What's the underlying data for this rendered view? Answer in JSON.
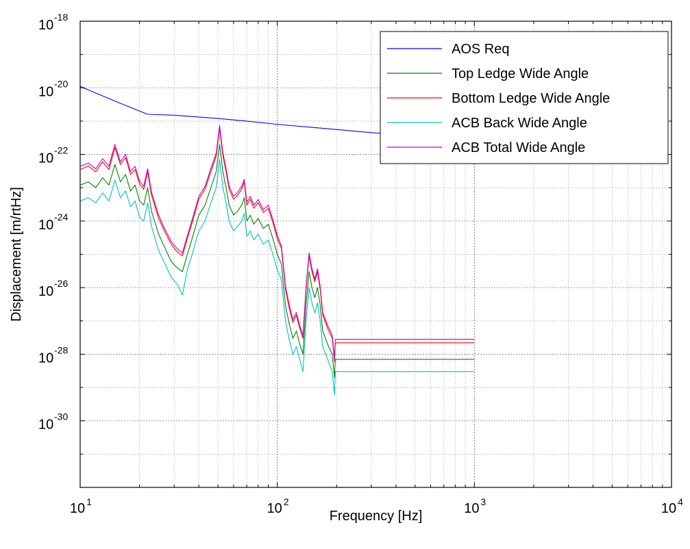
{
  "chart_data": {
    "type": "line",
    "xlabel": "Frequency [Hz]",
    "ylabel": "Displacement [m/rtHz]",
    "xscale": "log",
    "yscale": "log",
    "xlim": [
      10,
      10000
    ],
    "ylim": [
      1e-32,
      1e-18
    ],
    "grid": true,
    "legend_position": "top-right",
    "x_ticks": [
      {
        "base": "10",
        "exp": "1"
      },
      {
        "base": "10",
        "exp": "2"
      },
      {
        "base": "10",
        "exp": "3"
      },
      {
        "base": "10",
        "exp": "4"
      }
    ],
    "y_ticks": [
      {
        "value": 1e-18,
        "base": "10",
        "exp": "-18"
      },
      {
        "value": 1e-20,
        "base": "10",
        "exp": "-20"
      },
      {
        "value": 1e-22,
        "base": "10",
        "exp": "-22"
      },
      {
        "value": 1e-24,
        "base": "10",
        "exp": "-24"
      },
      {
        "value": 1e-26,
        "base": "10",
        "exp": "-26"
      },
      {
        "value": 1e-28,
        "base": "10",
        "exp": "-28"
      },
      {
        "value": 1e-30,
        "base": "10",
        "exp": "-30"
      }
    ],
    "series": [
      {
        "name": "AOS Req",
        "color": "#0000ff",
        "points": [
          [
            10,
            1.1e-20
          ],
          [
            12,
            7e-21
          ],
          [
            15,
            4e-21
          ],
          [
            20,
            2e-21
          ],
          [
            22,
            1.6e-21
          ],
          [
            30,
            1.5e-21
          ],
          [
            50,
            1.2e-21
          ],
          [
            70,
            1e-21
          ],
          [
            100,
            8e-22
          ],
          [
            150,
            6.5e-22
          ],
          [
            200,
            5.6e-22
          ],
          [
            300,
            4.5e-22
          ],
          [
            340,
            4.3e-22
          ]
        ]
      },
      {
        "name": "Top Ledge Wide Angle",
        "color": "#008000",
        "points": [
          [
            10,
            1.2e-23
          ],
          [
            11,
            1.5e-23
          ],
          [
            12,
            1e-23
          ],
          [
            13,
            2e-23
          ],
          [
            14,
            1.2e-23
          ],
          [
            15,
            5e-23
          ],
          [
            16,
            1.5e-23
          ],
          [
            17,
            2.5e-23
          ],
          [
            18,
            8e-24
          ],
          [
            19,
            1.2e-23
          ],
          [
            20,
            4e-24
          ],
          [
            21,
            3e-24
          ],
          [
            22,
            1e-23
          ],
          [
            23,
            2e-24
          ],
          [
            25,
            4e-25
          ],
          [
            27,
            1.5e-25
          ],
          [
            29,
            6e-26
          ],
          [
            31,
            4e-26
          ],
          [
            33,
            3e-26
          ],
          [
            35,
            1e-25
          ],
          [
            37,
            3e-25
          ],
          [
            40,
            1.5e-24
          ],
          [
            43,
            3e-24
          ],
          [
            46,
            1e-23
          ],
          [
            49,
            3e-23
          ],
          [
            51,
            2e-22
          ],
          [
            53,
            3e-23
          ],
          [
            55,
            1e-23
          ],
          [
            57,
            3e-24
          ],
          [
            60,
            1.5e-24
          ],
          [
            63,
            2e-24
          ],
          [
            66,
            3e-24
          ],
          [
            68,
            5e-24
          ],
          [
            70,
            1e-24
          ],
          [
            73,
            1.5e-24
          ],
          [
            76,
            8e-25
          ],
          [
            80,
            1.2e-24
          ],
          [
            85,
            6e-25
          ],
          [
            90,
            8e-25
          ],
          [
            95,
            3e-25
          ],
          [
            100,
            1e-25
          ],
          [
            105,
            5e-26
          ],
          [
            110,
            3e-27
          ],
          [
            115,
            8e-28
          ],
          [
            120,
            3e-28
          ],
          [
            125,
            5e-28
          ],
          [
            130,
            2e-28
          ],
          [
            135,
            1e-28
          ],
          [
            140,
            3e-27
          ],
          [
            145,
            3e-26
          ],
          [
            150,
            1e-26
          ],
          [
            155,
            5e-27
          ],
          [
            160,
            1e-26
          ],
          [
            165,
            3e-27
          ],
          [
            170,
            5e-28
          ],
          [
            180,
            2e-28
          ],
          [
            190,
            1e-28
          ],
          [
            195,
            2e-29
          ],
          [
            197,
            7e-29
          ],
          [
            1000,
            7e-29
          ]
        ]
      },
      {
        "name": "Bottom Ledge Wide Angle",
        "color": "#ff0000",
        "points": [
          [
            10,
            3.5e-23
          ],
          [
            11,
            4.5e-23
          ],
          [
            12,
            3e-23
          ],
          [
            13,
            6e-23
          ],
          [
            14,
            3.5e-23
          ],
          [
            15,
            1.6e-22
          ],
          [
            16,
            5e-23
          ],
          [
            17,
            8e-23
          ],
          [
            18,
            2.5e-23
          ],
          [
            19,
            3.5e-23
          ],
          [
            20,
            1.3e-23
          ],
          [
            21,
            9e-24
          ],
          [
            22,
            3e-23
          ],
          [
            23,
            6e-24
          ],
          [
            25,
            1.2e-24
          ],
          [
            27,
            4.5e-25
          ],
          [
            29,
            2e-25
          ],
          [
            31,
            1.2e-25
          ],
          [
            33,
            9e-26
          ],
          [
            35,
            3e-25
          ],
          [
            37,
            9e-25
          ],
          [
            40,
            4.5e-24
          ],
          [
            43,
            9e-24
          ],
          [
            46,
            3e-23
          ],
          [
            49,
            9e-23
          ],
          [
            51,
            6e-22
          ],
          [
            53,
            9e-23
          ],
          [
            55,
            3e-23
          ],
          [
            57,
            9e-24
          ],
          [
            60,
            4.5e-24
          ],
          [
            63,
            6e-24
          ],
          [
            66,
            9e-24
          ],
          [
            68,
            1.5e-23
          ],
          [
            70,
            3e-24
          ],
          [
            73,
            4.5e-24
          ],
          [
            76,
            2.4e-24
          ],
          [
            80,
            3.6e-24
          ],
          [
            85,
            1.8e-24
          ],
          [
            90,
            2.4e-24
          ],
          [
            95,
            9e-25
          ],
          [
            100,
            3e-25
          ],
          [
            105,
            1.5e-25
          ],
          [
            110,
            9e-27
          ],
          [
            115,
            2.4e-27
          ],
          [
            120,
            9e-28
          ],
          [
            125,
            1.5e-27
          ],
          [
            130,
            6e-28
          ],
          [
            135,
            3e-28
          ],
          [
            140,
            9e-27
          ],
          [
            145,
            9e-26
          ],
          [
            150,
            3e-26
          ],
          [
            155,
            1.5e-26
          ],
          [
            160,
            3e-26
          ],
          [
            165,
            9e-27
          ],
          [
            170,
            1.5e-27
          ],
          [
            180,
            6e-28
          ],
          [
            190,
            3e-28
          ],
          [
            195,
            6e-29
          ],
          [
            197,
            2.2e-28
          ],
          [
            1000,
            2.2e-28
          ]
        ]
      },
      {
        "name": "ACB Back Wide Angle",
        "color": "#00bfbf",
        "points": [
          [
            10,
            4e-24
          ],
          [
            11,
            5e-24
          ],
          [
            12,
            3.5e-24
          ],
          [
            13,
            7e-24
          ],
          [
            14,
            4e-24
          ],
          [
            15,
            1.7e-23
          ],
          [
            16,
            5e-24
          ],
          [
            17,
            8e-24
          ],
          [
            18,
            2.7e-24
          ],
          [
            19,
            4e-24
          ],
          [
            20,
            1.3e-24
          ],
          [
            21,
            1e-24
          ],
          [
            22,
            3.5e-24
          ],
          [
            23,
            7e-25
          ],
          [
            25,
            1.3e-25
          ],
          [
            27,
            5e-26
          ],
          [
            29,
            2e-26
          ],
          [
            31,
            1.3e-26
          ],
          [
            33,
            6e-27
          ],
          [
            35,
            3.5e-26
          ],
          [
            37,
            1e-25
          ],
          [
            40,
            5e-25
          ],
          [
            43,
            1e-24
          ],
          [
            46,
            3.5e-24
          ],
          [
            49,
            1e-23
          ],
          [
            51,
            7e-23
          ],
          [
            53,
            1e-23
          ],
          [
            55,
            3.5e-24
          ],
          [
            57,
            1e-24
          ],
          [
            60,
            5e-25
          ],
          [
            63,
            7e-25
          ],
          [
            66,
            1e-24
          ],
          [
            68,
            1.7e-24
          ],
          [
            70,
            3.5e-25
          ],
          [
            73,
            5e-25
          ],
          [
            76,
            2.7e-25
          ],
          [
            80,
            4e-25
          ],
          [
            85,
            2e-25
          ],
          [
            90,
            2.7e-25
          ],
          [
            95,
            1e-25
          ],
          [
            100,
            3.5e-26
          ],
          [
            105,
            1.7e-26
          ],
          [
            110,
            1e-27
          ],
          [
            115,
            2.7e-28
          ],
          [
            120,
            1e-28
          ],
          [
            125,
            1.7e-28
          ],
          [
            130,
            7e-29
          ],
          [
            135,
            3e-29
          ],
          [
            140,
            1e-27
          ],
          [
            145,
            1e-26
          ],
          [
            150,
            3.5e-27
          ],
          [
            155,
            1.7e-27
          ],
          [
            160,
            3.5e-27
          ],
          [
            165,
            1e-27
          ],
          [
            170,
            1.7e-28
          ],
          [
            180,
            7e-29
          ],
          [
            190,
            3e-29
          ],
          [
            195,
            6e-30
          ],
          [
            197,
            3e-29
          ],
          [
            1000,
            3e-29
          ]
        ]
      },
      {
        "name": "ACB Total Wide Angle",
        "color": "#bf00bf",
        "points": [
          [
            10,
            4.4e-23
          ],
          [
            11,
            5.5e-23
          ],
          [
            12,
            3.7e-23
          ],
          [
            13,
            7.4e-23
          ],
          [
            14,
            4.4e-23
          ],
          [
            15,
            2e-22
          ],
          [
            16,
            6e-23
          ],
          [
            17,
            1e-22
          ],
          [
            18,
            3.1e-23
          ],
          [
            19,
            4.4e-23
          ],
          [
            20,
            1.6e-23
          ],
          [
            21,
            1.1e-23
          ],
          [
            22,
            3.7e-23
          ],
          [
            23,
            7.4e-24
          ],
          [
            25,
            1.5e-24
          ],
          [
            27,
            5.5e-25
          ],
          [
            29,
            2.4e-25
          ],
          [
            31,
            1.5e-25
          ],
          [
            33,
            1.1e-25
          ],
          [
            35,
            3.7e-25
          ],
          [
            37,
            1.1e-24
          ],
          [
            40,
            5.5e-24
          ],
          [
            43,
            1.1e-23
          ],
          [
            46,
            3.7e-23
          ],
          [
            49,
            1.1e-22
          ],
          [
            51,
            7.4e-22
          ],
          [
            53,
            1.1e-22
          ],
          [
            55,
            3.7e-23
          ],
          [
            57,
            1.1e-23
          ],
          [
            60,
            5.5e-24
          ],
          [
            63,
            7.4e-24
          ],
          [
            66,
            1.1e-23
          ],
          [
            68,
            1.8e-23
          ],
          [
            70,
            3.7e-24
          ],
          [
            73,
            5.5e-24
          ],
          [
            76,
            3e-24
          ],
          [
            80,
            4.4e-24
          ],
          [
            85,
            2.2e-24
          ],
          [
            90,
            3e-24
          ],
          [
            95,
            1.1e-24
          ],
          [
            100,
            3.7e-25
          ],
          [
            105,
            1.8e-25
          ],
          [
            110,
            1.1e-26
          ],
          [
            115,
            3e-27
          ],
          [
            120,
            1.1e-27
          ],
          [
            125,
            1.8e-27
          ],
          [
            130,
            7.4e-28
          ],
          [
            135,
            3.7e-28
          ],
          [
            140,
            1.1e-26
          ],
          [
            145,
            1.1e-25
          ],
          [
            150,
            3.7e-26
          ],
          [
            155,
            1.8e-26
          ],
          [
            160,
            3.7e-26
          ],
          [
            165,
            1.1e-26
          ],
          [
            170,
            1.8e-27
          ],
          [
            180,
            7.4e-28
          ],
          [
            190,
            3.7e-28
          ],
          [
            195,
            7.4e-29
          ],
          [
            197,
            2.8e-28
          ],
          [
            1000,
            2.8e-28
          ]
        ]
      }
    ]
  }
}
